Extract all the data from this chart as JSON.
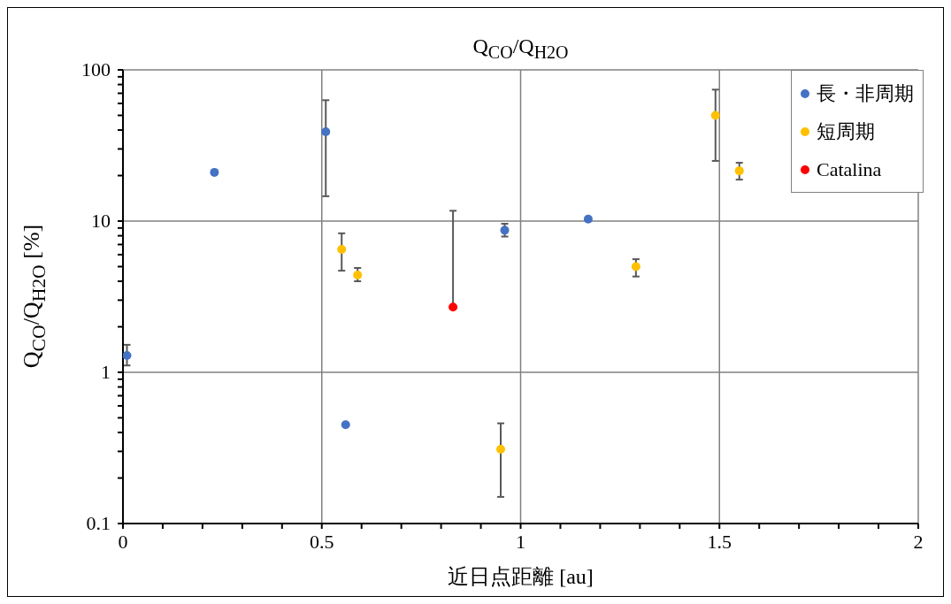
{
  "chart_data": {
    "type": "scatter",
    "title": "Q$_{CO}$/Q$_{H2O}$",
    "xlabel": "近日点距離 [au]",
    "ylabel": "Q$_{CO}$/Q$_{H2O}$ [%]",
    "xlim": [
      0,
      2
    ],
    "ylim": [
      0.1,
      100
    ],
    "log": "y",
    "xticks": [
      0,
      {
        "value": 0.1,
        "label": null
      },
      {
        "value": 0.2,
        "label": null
      },
      {
        "value": 0.3,
        "label": null
      },
      {
        "value": 0.4,
        "label": null
      },
      0.5,
      {
        "value": 0.6,
        "label": null
      },
      {
        "value": 0.7,
        "label": null
      },
      {
        "value": 0.8,
        "label": null
      },
      {
        "value": 0.9,
        "label": null
      },
      1,
      {
        "value": 1.1,
        "label": null
      },
      {
        "value": 1.2,
        "label": null
      },
      {
        "value": 1.3,
        "label": null
      },
      {
        "value": 1.4,
        "label": null
      },
      1.5,
      {
        "value": 1.6,
        "label": null
      },
      {
        "value": 1.7,
        "label": null
      },
      {
        "value": 1.8,
        "label": null
      },
      {
        "value": 1.9,
        "label": null
      },
      2
    ],
    "yticks": [
      0.1,
      {
        "value": 0.2,
        "label": null
      },
      {
        "value": 0.3,
        "label": null
      },
      {
        "value": 0.4,
        "label": null
      },
      {
        "value": 0.5,
        "label": null
      },
      {
        "value": 0.6,
        "label": null
      },
      {
        "value": 0.7,
        "label": null
      },
      {
        "value": 0.8,
        "label": null
      },
      {
        "value": 0.9,
        "label": null
      },
      1,
      {
        "value": 2,
        "label": null
      },
      {
        "value": 3,
        "label": null
      },
      {
        "value": 4,
        "label": null
      },
      {
        "value": 5,
        "label": null
      },
      {
        "value": 6,
        "label": null
      },
      {
        "value": 7,
        "label": null
      },
      {
        "value": 8,
        "label": null
      },
      {
        "value": 9,
        "label": null
      },
      10,
      {
        "value": 20,
        "label": null
      },
      {
        "value": 30,
        "label": null
      },
      {
        "value": 40,
        "label": null
      },
      {
        "value": 50,
        "label": null
      },
      {
        "value": 60,
        "label": null
      },
      {
        "value": 70,
        "label": null
      },
      {
        "value": 80,
        "label": null
      },
      {
        "value": 90,
        "label": null
      },
      100
    ],
    "grid": true,
    "legend": "top right",
    "marker": "circle",
    "series": [
      {
        "name": "長・非周期",
        "color": "#4472c4",
        "x": [
          0.01,
          0.23,
          0.51,
          0.56,
          0.96,
          1.17
        ],
        "values": [
          1.29,
          21,
          39,
          0.45,
          8.7,
          10.3
        ],
        "errors": [
          [
            1.11,
            1.52
          ],
          null,
          [
            14.6,
            63
          ],
          null,
          [
            7.9,
            9.6
          ],
          null
        ]
      },
      {
        "name": "短周期",
        "color": "#ffc000",
        "x": [
          0.55,
          0.59,
          0.95,
          1.29,
          1.49,
          1.55
        ],
        "values": [
          6.5,
          4.4,
          0.31,
          5.0,
          50,
          21.5
        ],
        "errors": [
          [
            4.7,
            8.3
          ],
          [
            4.0,
            4.9
          ],
          [
            0.15,
            0.46
          ],
          [
            4.3,
            5.6
          ],
          [
            25,
            74
          ],
          [
            18.8,
            24.3
          ]
        ]
      },
      {
        "name": "Catalina",
        "color": "#ff0000",
        "x": [
          0.83
        ],
        "values": [
          2.7
        ],
        "errors": [
          [
            2.7,
            11.7
          ]
        ]
      }
    ]
  }
}
